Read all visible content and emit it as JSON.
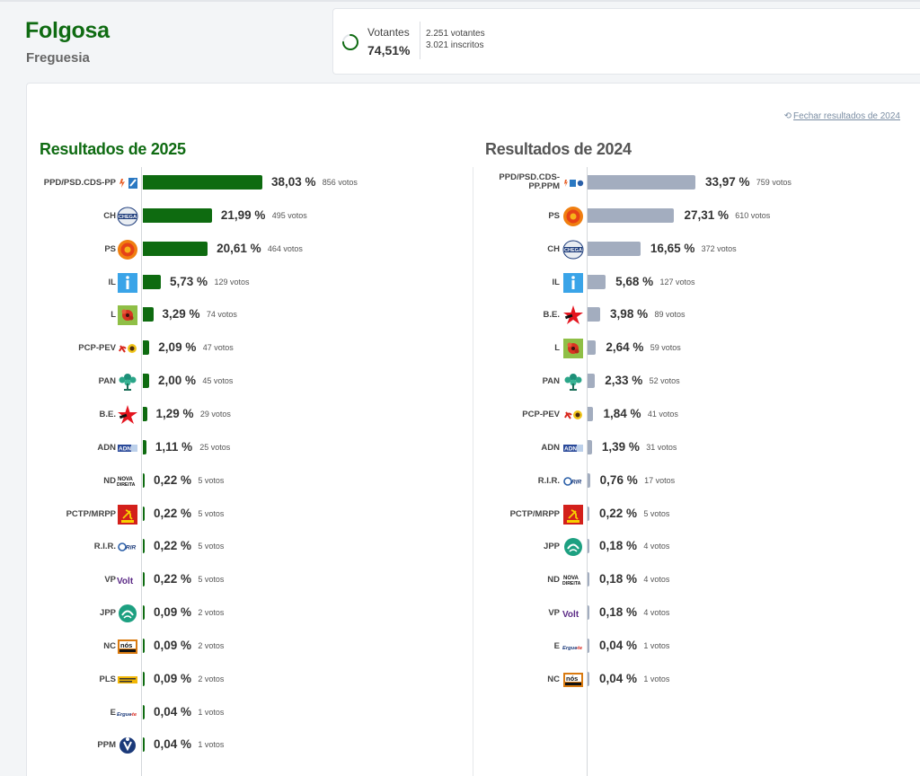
{
  "place": {
    "name": "Folgosa",
    "type": "Freguesia"
  },
  "turnout": {
    "label": "Votantes",
    "percent": "74,51%",
    "percent_value": 74.51,
    "voters": "2.251 votantes",
    "registered": "3.021 inscritos",
    "ring_color": "#0f6b12"
  },
  "close_link": "Fechar resultados de 2024",
  "colors": {
    "bar_2025": "#0e6b10",
    "bar_2024": "#a3adbf",
    "title_2025": "#0f6b12"
  },
  "results_2025": {
    "title": "Resultados de 2025",
    "rows": [
      {
        "party": "PPD/PSD.CDS-PP",
        "pct": 38.03,
        "pct_label": "38,03 %",
        "votes": "856 votos",
        "logo": "psd-cds-logo"
      },
      {
        "party": "CH",
        "pct": 21.99,
        "pct_label": "21,99 %",
        "votes": "495 votos",
        "logo": "chega-logo"
      },
      {
        "party": "PS",
        "pct": 20.61,
        "pct_label": "20,61 %",
        "votes": "464 votos",
        "logo": "ps-logo"
      },
      {
        "party": "IL",
        "pct": 5.73,
        "pct_label": "5,73 %",
        "votes": "129 votos",
        "logo": "il-logo"
      },
      {
        "party": "L",
        "pct": 3.29,
        "pct_label": "3,29 %",
        "votes": "74 votos",
        "logo": "livre-logo"
      },
      {
        "party": "PCP-PEV",
        "pct": 2.09,
        "pct_label": "2,09 %",
        "votes": "47 votos",
        "logo": "cdu-logo"
      },
      {
        "party": "PAN",
        "pct": 2.0,
        "pct_label": "2,00 %",
        "votes": "45 votos",
        "logo": "pan-logo"
      },
      {
        "party": "B.E.",
        "pct": 1.29,
        "pct_label": "1,29 %",
        "votes": "29 votos",
        "logo": "be-logo"
      },
      {
        "party": "ADN",
        "pct": 1.11,
        "pct_label": "1,11 %",
        "votes": "25 votos",
        "logo": "adn-logo"
      },
      {
        "party": "ND",
        "pct": 0.22,
        "pct_label": "0,22 %",
        "votes": "5 votos",
        "logo": "nd-logo"
      },
      {
        "party": "PCTP/MRPP",
        "pct": 0.22,
        "pct_label": "0,22 %",
        "votes": "5 votos",
        "logo": "mrpp-logo"
      },
      {
        "party": "R.I.R.",
        "pct": 0.22,
        "pct_label": "0,22 %",
        "votes": "5 votos",
        "logo": "rir-logo"
      },
      {
        "party": "VP",
        "pct": 0.22,
        "pct_label": "0,22 %",
        "votes": "5 votos",
        "logo": "volt-logo"
      },
      {
        "party": "JPP",
        "pct": 0.09,
        "pct_label": "0,09 %",
        "votes": "2 votos",
        "logo": "jpp-logo"
      },
      {
        "party": "NC",
        "pct": 0.09,
        "pct_label": "0,09 %",
        "votes": "2 votos",
        "logo": "nc-logo"
      },
      {
        "party": "PLS",
        "pct": 0.09,
        "pct_label": "0,09 %",
        "votes": "2 votos",
        "logo": "pls-logo"
      },
      {
        "party": "E",
        "pct": 0.04,
        "pct_label": "0,04 %",
        "votes": "1 votos",
        "logo": "ergue-te-logo"
      },
      {
        "party": "PPM",
        "pct": 0.04,
        "pct_label": "0,04 %",
        "votes": "1 votos",
        "logo": "ppm-logo"
      }
    ]
  },
  "results_2024": {
    "title": "Resultados de 2024",
    "rows": [
      {
        "party": "PPD/PSD.CDS-PP.PPM",
        "pct": 33.97,
        "pct_label": "33,97 %",
        "votes": "759 votos",
        "logo": "ad-logo"
      },
      {
        "party": "PS",
        "pct": 27.31,
        "pct_label": "27,31 %",
        "votes": "610 votos",
        "logo": "ps-logo"
      },
      {
        "party": "CH",
        "pct": 16.65,
        "pct_label": "16,65 %",
        "votes": "372 votos",
        "logo": "chega-logo"
      },
      {
        "party": "IL",
        "pct": 5.68,
        "pct_label": "5,68 %",
        "votes": "127 votos",
        "logo": "il-logo"
      },
      {
        "party": "B.E.",
        "pct": 3.98,
        "pct_label": "3,98 %",
        "votes": "89 votos",
        "logo": "be-logo"
      },
      {
        "party": "L",
        "pct": 2.64,
        "pct_label": "2,64 %",
        "votes": "59 votos",
        "logo": "livre-logo"
      },
      {
        "party": "PAN",
        "pct": 2.33,
        "pct_label": "2,33 %",
        "votes": "52 votos",
        "logo": "pan-logo"
      },
      {
        "party": "PCP-PEV",
        "pct": 1.84,
        "pct_label": "1,84 %",
        "votes": "41 votos",
        "logo": "cdu-logo"
      },
      {
        "party": "ADN",
        "pct": 1.39,
        "pct_label": "1,39 %",
        "votes": "31 votos",
        "logo": "adn-logo"
      },
      {
        "party": "R.I.R.",
        "pct": 0.76,
        "pct_label": "0,76 %",
        "votes": "17 votos",
        "logo": "rir-logo"
      },
      {
        "party": "PCTP/MRPP",
        "pct": 0.22,
        "pct_label": "0,22 %",
        "votes": "5 votos",
        "logo": "mrpp-logo"
      },
      {
        "party": "JPP",
        "pct": 0.18,
        "pct_label": "0,18 %",
        "votes": "4 votos",
        "logo": "jpp-logo"
      },
      {
        "party": "ND",
        "pct": 0.18,
        "pct_label": "0,18 %",
        "votes": "4 votos",
        "logo": "nd-logo"
      },
      {
        "party": "VP",
        "pct": 0.18,
        "pct_label": "0,18 %",
        "votes": "4 votos",
        "logo": "volt-logo"
      },
      {
        "party": "E",
        "pct": 0.04,
        "pct_label": "0,04 %",
        "votes": "1 votos",
        "logo": "ergue-te-logo"
      },
      {
        "party": "NC",
        "pct": 0.04,
        "pct_label": "0,04 %",
        "votes": "1 votos",
        "logo": "nc-logo"
      }
    ]
  }
}
